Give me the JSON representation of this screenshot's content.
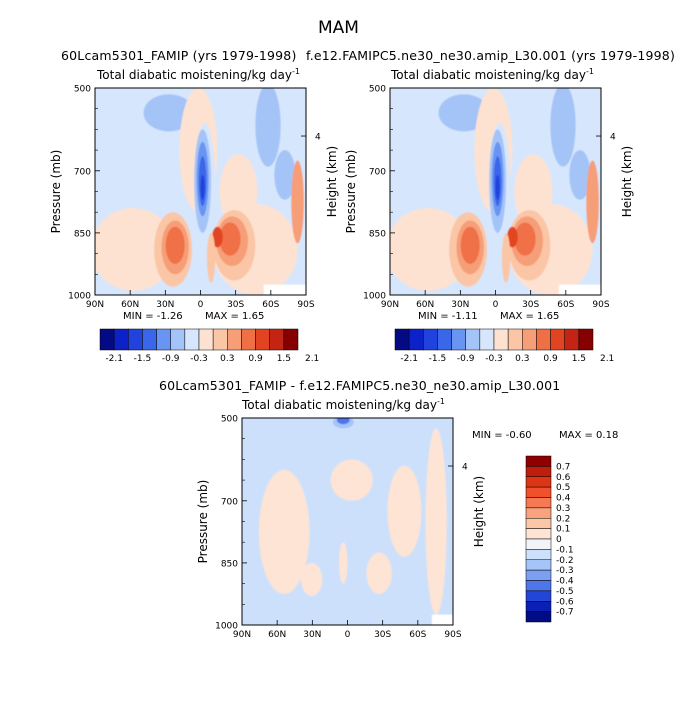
{
  "figure": {
    "season": "MAM",
    "unit_prefix": "Total diabatic moistening/kg day",
    "unit_exp": "-1"
  },
  "panels": [
    {
      "id": "case1",
      "case_title": "60Lcam5301_FAMIP (yrs 1979-1998)",
      "min_text": "MIN = -1.26",
      "max_text": "MAX = 1.65"
    },
    {
      "id": "case2",
      "case_title": "f.e12.FAMIPC5.ne30_ne30.amip_L30.001 (yrs 1979-1998)",
      "min_text": "MIN = -1.11",
      "max_text": "MAX = 1.65"
    },
    {
      "id": "diff",
      "case_title": "60Lcam5301_FAMIP - f.e12.FAMIPC5.ne30_ne30.amip_L30.001",
      "min_text": "MIN = -0.60",
      "max_text": "MAX = 0.18"
    }
  ],
  "axes": {
    "ylabel": "Pressure (mb)",
    "ylabel_right": "Height (km)",
    "pressure_ticks": [
      "500",
      "700",
      "850",
      "1000"
    ],
    "height_tick": "4",
    "lat_ticks": [
      "90N",
      "60N",
      "30N",
      "0",
      "30S",
      "60S",
      "90S"
    ]
  },
  "colorbars": {
    "main": {
      "labels": [
        "-2.1",
        "-1.5",
        "-0.9",
        "-0.3",
        "0.3",
        "0.9",
        "1.5",
        "2.1"
      ],
      "colors": [
        "#040a84",
        "#0c22c8",
        "#2142dc",
        "#3a66ea",
        "#6a94f2",
        "#a4c4f8",
        "#d6e6fc",
        "#fde2d2",
        "#fbc6a6",
        "#f69e78",
        "#f07046",
        "#e24422",
        "#c42414",
        "#870000"
      ]
    },
    "diff": {
      "labels": [
        "0.7",
        "0.6",
        "0.5",
        "0.4",
        "0.3",
        "0.2",
        "0.1",
        "0",
        "-0.1",
        "-0.2",
        "-0.3",
        "-0.4",
        "-0.5",
        "-0.6",
        "-0.7"
      ],
      "colors": [
        "#8f0000",
        "#c01e0c",
        "#dc3616",
        "#f0502a",
        "#f57a54",
        "#f9a27e",
        "#fcc6a8",
        "#fde4d4",
        "#f2f4fa",
        "#cde0fb",
        "#a6c4f8",
        "#7c9ff2",
        "#4f75ea",
        "#2446d8",
        "#0a20b4",
        "#000c86"
      ]
    }
  },
  "chart_data": [
    {
      "type": "heatmap",
      "title": "60Lcam5301_FAMIP (yrs 1979-1998)",
      "subtitle": "Total diabatic moistening/kg day-1",
      "xlabel": "",
      "ylabel": "Pressure (mb)",
      "ylabel_right": "Height (km)",
      "x_ticks": [
        "90N",
        "60N",
        "30N",
        "0",
        "30S",
        "60S",
        "90S"
      ],
      "y_ticks": [
        500,
        700,
        850,
        1000
      ],
      "ylim": [
        1000,
        500
      ],
      "min": -1.26,
      "max": 1.65,
      "levels": [
        -2.1,
        -1.8,
        -1.5,
        -1.2,
        -0.9,
        -0.6,
        -0.3,
        0.3,
        0.6,
        0.9,
        1.2,
        1.5,
        1.8,
        2.1
      ]
    },
    {
      "type": "heatmap",
      "title": "f.e12.FAMIPC5.ne30_ne30.amip_L30.001 (yrs 1979-1998)",
      "subtitle": "Total diabatic moistening/kg day-1",
      "xlabel": "",
      "ylabel": "Pressure (mb)",
      "ylabel_right": "Height (km)",
      "x_ticks": [
        "90N",
        "60N",
        "30N",
        "0",
        "30S",
        "60S",
        "90S"
      ],
      "y_ticks": [
        500,
        700,
        850,
        1000
      ],
      "ylim": [
        1000,
        500
      ],
      "min": -1.11,
      "max": 1.65,
      "levels": [
        -2.1,
        -1.8,
        -1.5,
        -1.2,
        -0.9,
        -0.6,
        -0.3,
        0.3,
        0.6,
        0.9,
        1.2,
        1.5,
        1.8,
        2.1
      ]
    },
    {
      "type": "heatmap",
      "title": "60Lcam5301_FAMIP - f.e12.FAMIPC5.ne30_ne30.amip_L30.001",
      "subtitle": "Total diabatic moistening/kg day-1",
      "xlabel": "",
      "ylabel": "Pressure (mb)",
      "ylabel_right": "Height (km)",
      "x_ticks": [
        "90N",
        "60N",
        "30N",
        "0",
        "30S",
        "60S",
        "90S"
      ],
      "y_ticks": [
        500,
        700,
        850,
        1000
      ],
      "ylim": [
        1000,
        500
      ],
      "min": -0.6,
      "max": 0.18,
      "levels": [
        -0.7,
        -0.6,
        -0.5,
        -0.4,
        -0.3,
        -0.2,
        -0.1,
        0,
        0.1,
        0.2,
        0.3,
        0.4,
        0.5,
        0.6,
        0.7
      ]
    }
  ]
}
